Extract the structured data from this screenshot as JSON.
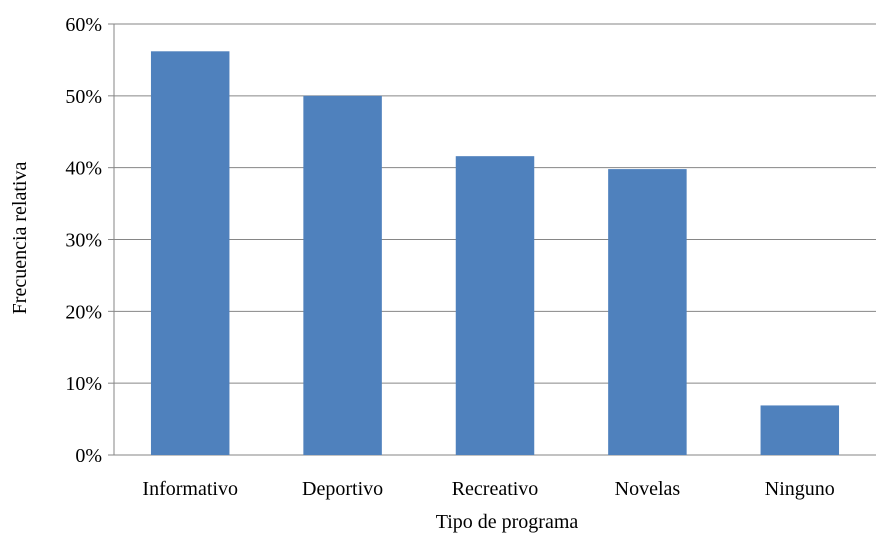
{
  "chart_data": {
    "type": "bar",
    "categories": [
      "Informativo",
      "Deportivo",
      "Recreativo",
      "Novelas",
      "Ninguno"
    ],
    "values": [
      56.2,
      50.0,
      41.6,
      39.8,
      6.9
    ],
    "xlabel": "Tipo de programa",
    "ylabel": "Frecuencia relativa",
    "ylim": [
      0,
      60
    ],
    "yticks": [
      0,
      10,
      20,
      30,
      40,
      50,
      60
    ],
    "ytick_labels": [
      "0%",
      "10%",
      "20%",
      "30%",
      "40%",
      "50%",
      "60%"
    ],
    "grid": true,
    "bar_color": "#4F81BD",
    "grid_color": "#868686"
  }
}
